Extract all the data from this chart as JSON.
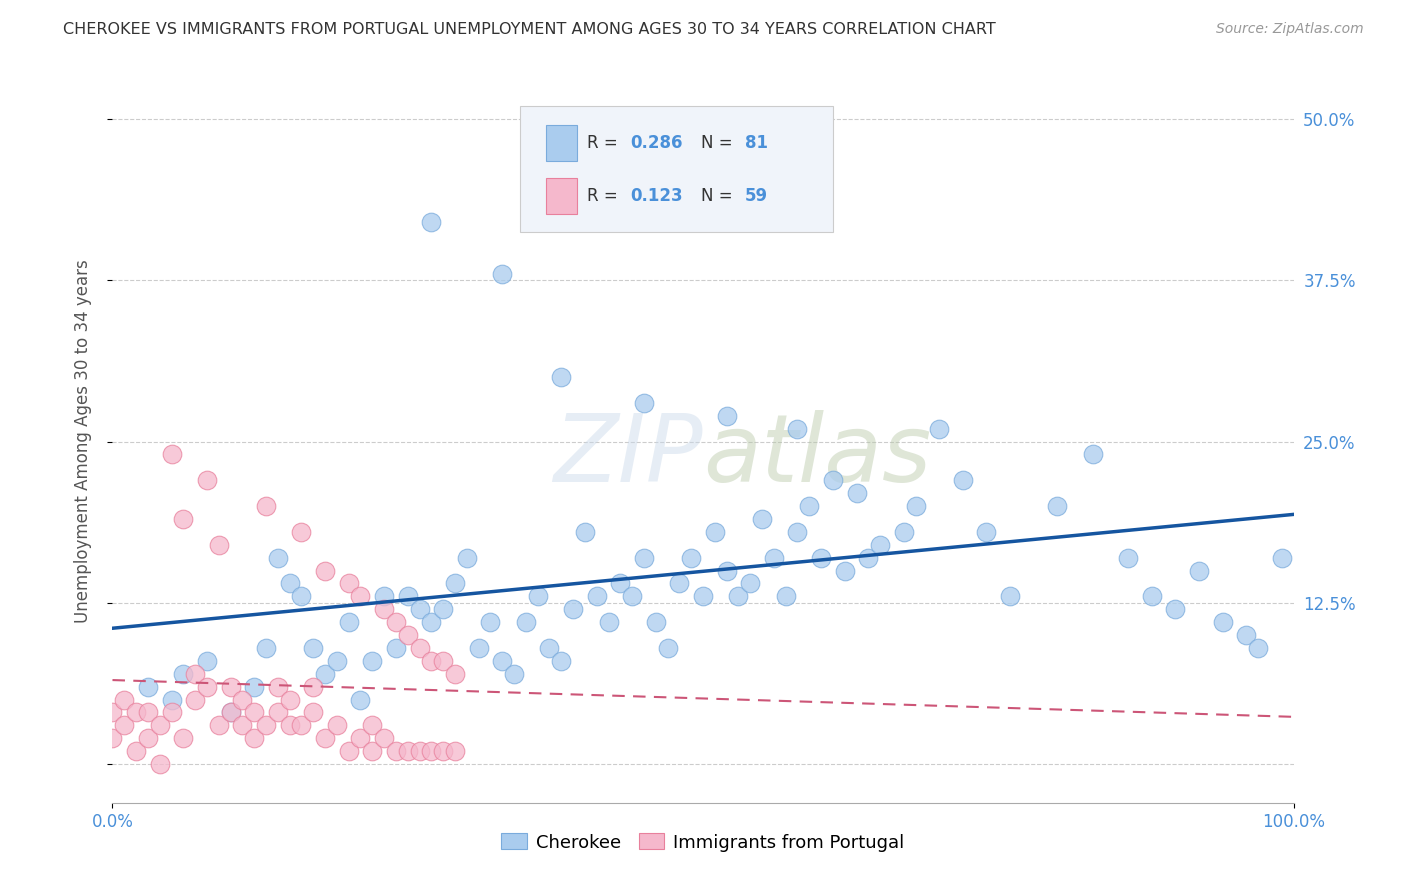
{
  "title": "CHEROKEE VS IMMIGRANTS FROM PORTUGAL UNEMPLOYMENT AMONG AGES 30 TO 34 YEARS CORRELATION CHART",
  "source": "Source: ZipAtlas.com",
  "ylabel": "Unemployment Among Ages 30 to 34 years",
  "xlim": [
    0,
    100
  ],
  "ylim": [
    -3,
    53
  ],
  "ytick_values": [
    0,
    12.5,
    25.0,
    37.5,
    50.0
  ],
  "ytick_labels_right": [
    "",
    "12.5%",
    "25.0%",
    "37.5%",
    "50.0%"
  ],
  "background_color": "#ffffff",
  "grid_color": "#cccccc",
  "cherokee_color": "#aaccee",
  "cherokee_edge_color": "#7aabdc",
  "portugal_color": "#f5b8cc",
  "portugal_edge_color": "#e8809c",
  "cherokee_line_color": "#1555a0",
  "portugal_line_color": "#cc5577",
  "cherokee_x": [
    3,
    5,
    6,
    8,
    10,
    12,
    13,
    14,
    15,
    16,
    17,
    18,
    19,
    20,
    21,
    22,
    23,
    24,
    25,
    26,
    27,
    28,
    29,
    30,
    31,
    32,
    33,
    34,
    35,
    36,
    37,
    38,
    39,
    40,
    41,
    42,
    43,
    44,
    45,
    46,
    47,
    48,
    49,
    50,
    51,
    52,
    53,
    54,
    55,
    56,
    57,
    58,
    59,
    60,
    61,
    62,
    63,
    64,
    65,
    67,
    68,
    70,
    72,
    74,
    76,
    80,
    83,
    86,
    88,
    90,
    92,
    94,
    96,
    97,
    99,
    27,
    33,
    38,
    45,
    52,
    58
  ],
  "cherokee_y": [
    6,
    5,
    7,
    8,
    4,
    6,
    9,
    16,
    14,
    13,
    9,
    7,
    8,
    11,
    5,
    8,
    13,
    9,
    13,
    12,
    11,
    12,
    14,
    16,
    9,
    11,
    8,
    7,
    11,
    13,
    9,
    8,
    12,
    18,
    13,
    11,
    14,
    13,
    16,
    11,
    9,
    14,
    16,
    13,
    18,
    15,
    13,
    14,
    19,
    16,
    13,
    18,
    20,
    16,
    22,
    15,
    21,
    16,
    17,
    18,
    20,
    26,
    22,
    18,
    13,
    20,
    24,
    16,
    13,
    12,
    15,
    11,
    10,
    9,
    16,
    42,
    38,
    30,
    28,
    27,
    26
  ],
  "portugal_x": [
    0,
    0,
    1,
    1,
    2,
    2,
    3,
    3,
    4,
    4,
    5,
    5,
    6,
    6,
    7,
    7,
    8,
    8,
    9,
    9,
    10,
    10,
    11,
    11,
    12,
    12,
    13,
    13,
    14,
    14,
    15,
    15,
    16,
    16,
    17,
    17,
    18,
    18,
    19,
    20,
    20,
    21,
    21,
    22,
    22,
    23,
    23,
    24,
    24,
    25,
    25,
    26,
    26,
    27,
    27,
    28,
    28,
    29,
    29
  ],
  "portugal_y": [
    2,
    4,
    3,
    5,
    1,
    4,
    2,
    4,
    0,
    3,
    4,
    24,
    2,
    19,
    5,
    7,
    6,
    22,
    3,
    17,
    4,
    6,
    3,
    5,
    2,
    4,
    20,
    3,
    6,
    4,
    3,
    5,
    18,
    3,
    6,
    4,
    2,
    15,
    3,
    1,
    14,
    2,
    13,
    1,
    3,
    2,
    12,
    1,
    11,
    1,
    10,
    1,
    9,
    1,
    8,
    1,
    8,
    1,
    7
  ],
  "legend_box_color": "#f0f4fa",
  "legend_box_edge": "#cccccc"
}
